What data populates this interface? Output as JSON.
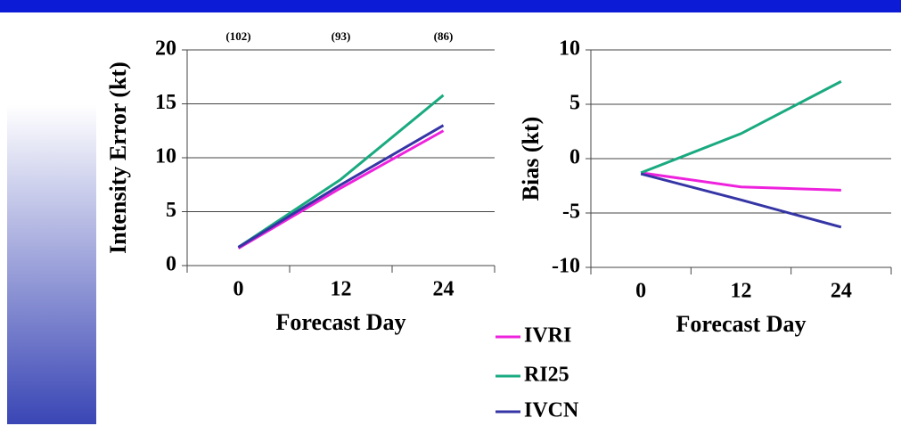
{
  "chart_data": [
    {
      "type": "line",
      "y_label": "Intensity Error (kt)",
      "x_label": "Forecast Day",
      "categories": [
        "0",
        "12",
        "24"
      ],
      "annotations": [
        "(102)",
        "(93)",
        "(86)"
      ],
      "ylim": [
        0,
        20
      ],
      "yticks": [
        0,
        5,
        10,
        15,
        20
      ],
      "grid": true,
      "series": [
        {
          "name": "IVRI",
          "color": "#ee22dd",
          "values": [
            1.6,
            7.2,
            12.5
          ]
        },
        {
          "name": "RI25",
          "color": "#1aaa80",
          "values": [
            1.7,
            8.0,
            15.8
          ]
        },
        {
          "name": "IVCN",
          "color": "#3535a5",
          "values": [
            1.7,
            7.5,
            13.0
          ]
        }
      ]
    },
    {
      "type": "line",
      "y_label": "Bias (kt)",
      "x_label": "Forecast Day",
      "categories": [
        "0",
        "12",
        "24"
      ],
      "ylim": [
        -10,
        10
      ],
      "yticks": [
        -10,
        -5,
        0,
        5,
        10
      ],
      "grid": true,
      "series": [
        {
          "color": "#ee22dd",
          "values": [
            -1.3,
            -2.6,
            -2.9
          ]
        },
        {
          "color": "#1aaa80",
          "values": [
            -1.3,
            2.3,
            7.1
          ]
        },
        {
          "color": "#3535a5",
          "values": [
            -1.4,
            -3.8,
            -6.3
          ]
        }
      ]
    }
  ]
}
